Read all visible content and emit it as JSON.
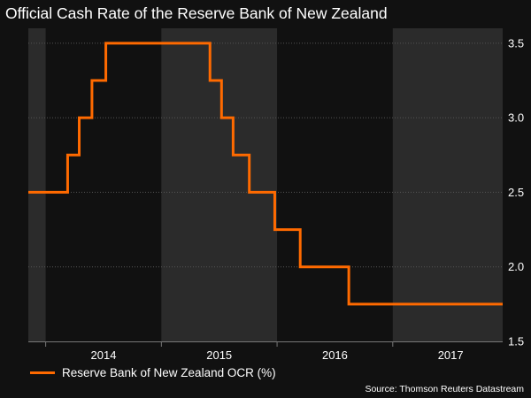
{
  "chart_data": {
    "type": "line",
    "title": "Official Cash Rate of the Reserve Bank of New Zealand",
    "xlabel": "",
    "ylabel": "",
    "xlim": [
      2013.35,
      2017.45
    ],
    "ylim": [
      1.5,
      3.6
    ],
    "y_ticks": [
      1.5,
      2.0,
      2.5,
      3.0,
      3.5
    ],
    "y_tick_labels": [
      "1.5",
      "2.0",
      "2.5",
      "3.0",
      "3.5"
    ],
    "x_tick_labels": [
      "2014",
      "2015",
      "2016",
      "2017"
    ],
    "x_tick_centers": [
      2014.0,
      2015.0,
      2016.0,
      2017.0
    ],
    "year_bands": [
      [
        2013.35,
        2013.5
      ],
      [
        2014.5,
        2015.5
      ],
      [
        2016.5,
        2017.45
      ]
    ],
    "grid": true,
    "legend_position": "bottom-left",
    "series": [
      {
        "name": "Reserve Bank of New Zealand OCR (%)",
        "color": "#ff6a00",
        "step": true,
        "x": [
          2013.35,
          2013.69,
          2013.79,
          2013.9,
          2014.02,
          2014.1,
          2014.92,
          2015.02,
          2015.12,
          2015.26,
          2015.48,
          2015.7,
          2016.12,
          2016.38,
          2017.45
        ],
        "y": [
          2.5,
          2.75,
          3.0,
          3.25,
          3.5,
          3.5,
          3.25,
          3.0,
          2.75,
          2.5,
          2.25,
          2.0,
          1.75,
          1.75,
          1.75
        ]
      }
    ]
  },
  "source": "Source: Thomson Reuters Datastream"
}
